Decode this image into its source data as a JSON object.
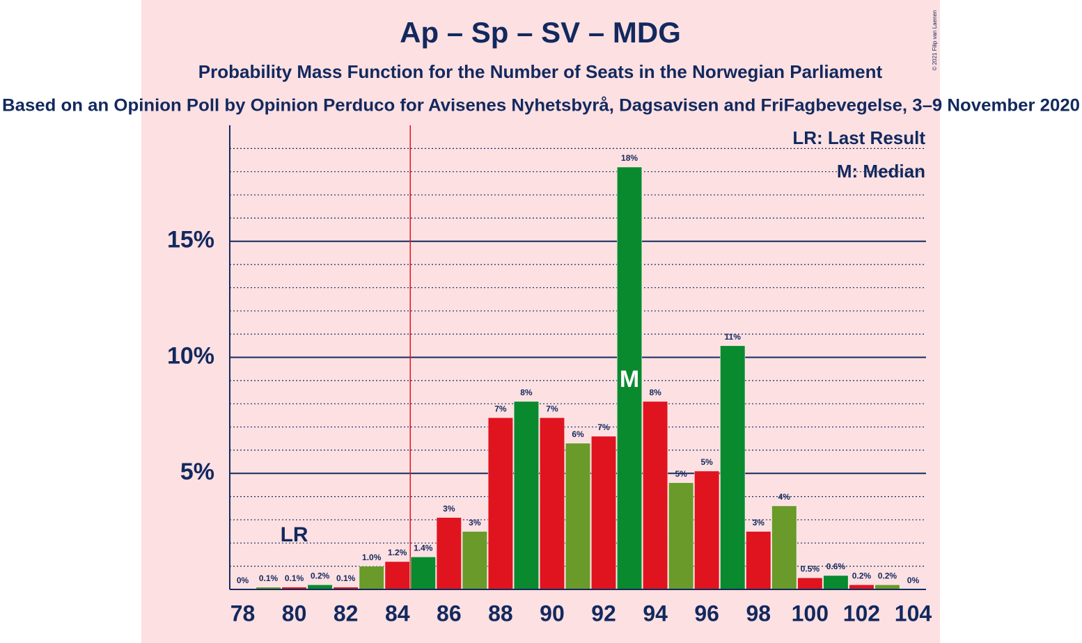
{
  "chart_data": {
    "type": "bar",
    "title": "Ap – Sp – SV – MDG",
    "subtitle": "Probability Mass Function for the Number of Seats in the Norwegian Parliament",
    "caption": "Based on an Opinion Poll by Opinion Perduco for Avisenes Nyhetsbyrå, Dagsavisen and FriFagbevegelse, 3–9 November 2020",
    "copyright": "© 2021 Filip van Laenen",
    "legend": [
      "LR: Last Result",
      "M: Median"
    ],
    "x": [
      78,
      79,
      80,
      81,
      82,
      83,
      84,
      85,
      86,
      87,
      88,
      89,
      90,
      91,
      92,
      93,
      94,
      95,
      96,
      97,
      98,
      99,
      100,
      101,
      102,
      103,
      104
    ],
    "values": [
      0,
      0.1,
      0.1,
      0.2,
      0.1,
      1.0,
      1.2,
      1.4,
      3.1,
      2.5,
      7.4,
      8.1,
      7.4,
      6.3,
      6.6,
      18.2,
      8.1,
      4.6,
      5.1,
      10.5,
      2.5,
      3.6,
      0.5,
      0.6,
      0.2,
      0.2,
      0
    ],
    "value_labels": [
      "0%",
      "0.1%",
      "0.1%",
      "0.2%",
      "0.1%",
      "1.0%",
      "1.2%",
      "1.4%",
      "3%",
      "3%",
      "7%",
      "8%",
      "7%",
      "6%",
      "7%",
      "18%",
      "8%",
      "5%",
      "5%",
      "11%",
      "3%",
      "4%",
      "0.5%",
      "0.6%",
      "0.2%",
      "0.2%",
      "0%"
    ],
    "colors": [
      "#e0141f",
      "#6a9a2a",
      "#e0141f",
      "#0a8a2e",
      "#e0141f",
      "#6a9a2a",
      "#e0141f",
      "#0a8a2e",
      "#e0141f",
      "#6a9a2a",
      "#e0141f",
      "#0a8a2e",
      "#e0141f",
      "#6a9a2a",
      "#e0141f",
      "#0a8a2e",
      "#e0141f",
      "#6a9a2a",
      "#e0141f",
      "#0a8a2e",
      "#e0141f",
      "#6a9a2a",
      "#e0141f",
      "#0a8a2e",
      "#e0141f",
      "#6a9a2a",
      "#e0141f"
    ],
    "xlim": [
      77.5,
      104.5
    ],
    "xticks": [
      78,
      80,
      82,
      84,
      86,
      88,
      90,
      92,
      94,
      96,
      98,
      100,
      102,
      104
    ],
    "ylim": [
      0,
      20
    ],
    "yticks": [
      {
        "value": 5,
        "label": "5%"
      },
      {
        "value": 10,
        "label": "10%"
      },
      {
        "value": 15,
        "label": "15%"
      }
    ],
    "minor_yticks": [
      1,
      2,
      3,
      4,
      6,
      7,
      8,
      9,
      11,
      12,
      13,
      14,
      16,
      17,
      18,
      19
    ],
    "majority_line_x": 84.5,
    "annotations": [
      {
        "text": "LR",
        "x": 80
      },
      {
        "text": "M",
        "x": 93
      }
    ]
  }
}
